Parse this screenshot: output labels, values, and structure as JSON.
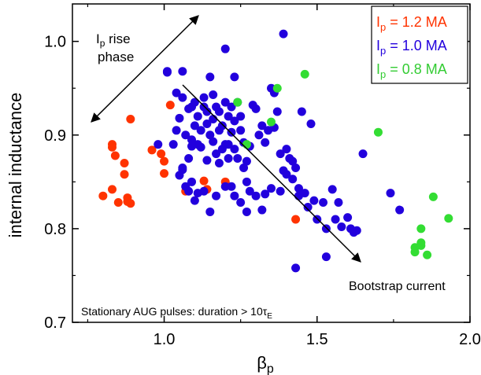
{
  "chart_data": {
    "type": "scatter",
    "xlim": [
      0.7,
      2.0
    ],
    "ylim": [
      0.7,
      1.04
    ],
    "x_ticks": [
      "1.0",
      "1.5",
      "2.0"
    ],
    "y_ticks": [
      "0.7",
      "0.8",
      "0.9",
      "1.0"
    ],
    "x_tick_values": [
      1.0,
      1.5,
      2.0
    ],
    "y_tick_values": [
      0.7,
      0.8,
      0.9,
      1.0
    ],
    "xlabel_main": "β",
    "xlabel_sub": "p",
    "ylabel": "internal  inductance",
    "grid": false,
    "legend_placement": "top-right",
    "series": [
      {
        "name_main": "I",
        "name_sub": "p",
        "name_rest": " = 1.2 MA",
        "color": "#ff3300",
        "points": [
          [
            0.8,
            0.835
          ],
          [
            0.83,
            0.842
          ],
          [
            0.83,
            0.89
          ],
          [
            0.83,
            0.887
          ],
          [
            0.84,
            0.878
          ],
          [
            0.85,
            0.828
          ],
          [
            0.87,
            0.87
          ],
          [
            0.87,
            0.858
          ],
          [
            0.88,
            0.829
          ],
          [
            0.88,
            0.833
          ],
          [
            0.89,
            0.917
          ],
          [
            0.89,
            0.827
          ],
          [
            0.96,
            0.884
          ],
          [
            0.99,
            0.88
          ],
          [
            1.0,
            0.859
          ],
          [
            1.0,
            0.872
          ],
          [
            1.02,
            0.932
          ],
          [
            1.07,
            0.84
          ],
          [
            1.13,
            0.851
          ],
          [
            1.14,
            0.842
          ],
          [
            1.2,
            0.85
          ],
          [
            1.43,
            0.81
          ]
        ]
      },
      {
        "name_main": "I",
        "name_sub": "p",
        "name_rest": " = 1.0 MA",
        "color": "#2200dd",
        "points": [
          [
            0.98,
            0.89
          ],
          [
            1.01,
            0.968
          ],
          [
            1.04,
            0.945
          ],
          [
            1.05,
            0.918
          ],
          [
            1.06,
            0.94
          ],
          [
            1.07,
            0.9
          ],
          [
            1.08,
            0.928
          ],
          [
            1.08,
            0.875
          ],
          [
            1.09,
            0.895
          ],
          [
            1.09,
            0.93
          ],
          [
            1.1,
            0.935
          ],
          [
            1.1,
            0.91
          ],
          [
            1.11,
            0.92
          ],
          [
            1.12,
            0.887
          ],
          [
            1.12,
            0.905
          ],
          [
            1.13,
            0.93
          ],
          [
            1.13,
            0.94
          ],
          [
            1.14,
            0.925
          ],
          [
            1.14,
            0.912
          ],
          [
            1.15,
            0.9
          ],
          [
            1.16,
            0.917
          ],
          [
            1.16,
            0.893
          ],
          [
            1.17,
            0.93
          ],
          [
            1.17,
            0.88
          ],
          [
            1.18,
            0.925
          ],
          [
            1.18,
            0.905
          ],
          [
            1.19,
            0.91
          ],
          [
            1.2,
            0.935
          ],
          [
            1.2,
            0.89
          ],
          [
            1.21,
            0.92
          ],
          [
            1.21,
            0.875
          ],
          [
            1.22,
            0.93
          ],
          [
            1.22,
            0.903
          ],
          [
            1.23,
            0.915
          ],
          [
            1.23,
            0.885
          ],
          [
            1.24,
            0.935
          ],
          [
            1.25,
            0.92
          ],
          [
            1.25,
            0.905
          ],
          [
            1.26,
            0.892
          ],
          [
            1.27,
            0.85
          ],
          [
            1.28,
            0.84
          ],
          [
            1.05,
            0.857
          ],
          [
            1.06,
            0.863
          ],
          [
            1.06,
            0.865
          ],
          [
            1.07,
            0.845
          ],
          [
            1.08,
            0.84
          ],
          [
            1.09,
            0.85
          ],
          [
            1.1,
            0.83
          ],
          [
            1.11,
            0.838
          ],
          [
            1.13,
            0.84
          ],
          [
            1.15,
            0.818
          ],
          [
            1.17,
            0.835
          ],
          [
            1.2,
            0.845
          ],
          [
            1.22,
            0.845
          ],
          [
            1.23,
            0.835
          ],
          [
            1.25,
            0.828
          ],
          [
            1.27,
            0.818
          ],
          [
            1.3,
            0.835
          ],
          [
            1.32,
            0.82
          ],
          [
            1.35,
            0.843
          ],
          [
            1.29,
            0.932
          ],
          [
            1.3,
            0.928
          ],
          [
            1.31,
            0.9
          ],
          [
            1.32,
            0.91
          ],
          [
            1.33,
            0.892
          ],
          [
            1.34,
            0.905
          ],
          [
            1.35,
            0.95
          ],
          [
            1.36,
            0.945
          ],
          [
            1.37,
            0.925
          ],
          [
            1.38,
            0.88
          ],
          [
            1.39,
            0.862
          ],
          [
            1.4,
            0.885
          ],
          [
            1.4,
            0.858
          ],
          [
            1.41,
            0.875
          ],
          [
            1.42,
            0.872
          ],
          [
            1.42,
            0.853
          ],
          [
            1.43,
            0.865
          ],
          [
            1.44,
            0.843
          ],
          [
            1.44,
            0.835
          ],
          [
            1.45,
            0.925
          ],
          [
            1.46,
            0.838
          ],
          [
            1.47,
            0.823
          ],
          [
            1.48,
            0.912
          ],
          [
            1.49,
            0.83
          ],
          [
            1.5,
            0.81
          ],
          [
            1.52,
            0.828
          ],
          [
            1.53,
            0.8
          ],
          [
            1.55,
            0.842
          ],
          [
            1.56,
            0.81
          ],
          [
            1.57,
            0.828
          ],
          [
            1.58,
            0.802
          ],
          [
            1.6,
            0.812
          ],
          [
            1.61,
            0.8
          ],
          [
            1.62,
            0.796
          ],
          [
            1.63,
            0.798
          ],
          [
            1.65,
            0.88
          ],
          [
            1.43,
            0.758
          ],
          [
            1.53,
            0.77
          ],
          [
            1.74,
            0.838
          ],
          [
            1.77,
            0.82
          ],
          [
            1.03,
            0.89
          ],
          [
            1.04,
            0.905
          ],
          [
            1.15,
            0.962
          ],
          [
            1.16,
            0.943
          ],
          [
            1.2,
            0.992
          ],
          [
            1.23,
            0.962
          ],
          [
            1.06,
            0.968
          ],
          [
            1.01,
            0.967
          ],
          [
            1.39,
            1.008
          ],
          [
            1.26,
            0.865
          ],
          [
            1.27,
            0.872
          ],
          [
            1.28,
            0.888
          ],
          [
            1.18,
            0.87
          ],
          [
            1.19,
            0.885
          ],
          [
            1.21,
            0.89
          ],
          [
            1.24,
            0.875
          ],
          [
            1.11,
            0.89
          ],
          [
            1.09,
            0.888
          ],
          [
            1.14,
            0.873
          ],
          [
            1.36,
            0.908
          ],
          [
            1.38,
            0.84
          ],
          [
            1.33,
            0.837
          ]
        ]
      },
      {
        "name_main": "I",
        "name_sub": "p",
        "name_rest": " = 0.8 MA",
        "color": "#33dd33",
        "points": [
          [
            1.24,
            0.935
          ],
          [
            1.27,
            0.89
          ],
          [
            1.35,
            0.914
          ],
          [
            1.37,
            0.95
          ],
          [
            1.46,
            0.965
          ],
          [
            1.7,
            0.903
          ],
          [
            1.82,
            0.78
          ],
          [
            1.82,
            0.775
          ],
          [
            1.84,
            0.785
          ],
          [
            1.84,
            0.8
          ],
          [
            1.86,
            0.772
          ],
          [
            1.88,
            0.834
          ],
          [
            1.93,
            0.811
          ],
          [
            1.84,
            0.782
          ]
        ]
      }
    ],
    "annotations": {
      "rise_line1_main": "I",
      "rise_line1_sub": "p",
      "rise_line1_rest": " rise",
      "rise_line2": "phase",
      "bootstrap": "Bootstrap current",
      "footnote_main": "Stationary AUG pulses: duration > 10τ",
      "footnote_sub": "E"
    }
  }
}
